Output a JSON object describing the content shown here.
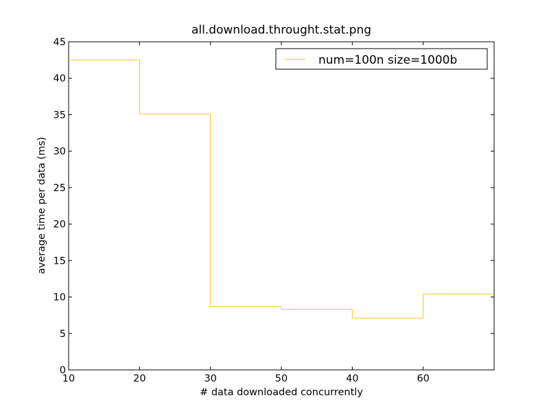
{
  "chart_data": {
    "type": "line",
    "step": "post",
    "title": "all.download.throught.stat.png",
    "xlabel": "# data downloaded concurrently",
    "ylabel": "average time per data (ms)",
    "x_tick_labels": [
      "10",
      "20",
      "30",
      "50",
      "40",
      "60"
    ],
    "y_ticks": [
      0,
      5,
      10,
      15,
      20,
      25,
      30,
      35,
      40,
      45
    ],
    "ylim": [
      0,
      45
    ],
    "grid": false,
    "legend": {
      "placement": "top-right"
    },
    "series": [
      {
        "name": "num=100n size=1000b",
        "color": "#ffc125",
        "x": [
          "10",
          "20",
          "30",
          "50",
          "40",
          "60"
        ],
        "values": [
          42.5,
          35.1,
          8.7,
          8.3,
          7.1,
          10.4
        ]
      }
    ]
  }
}
